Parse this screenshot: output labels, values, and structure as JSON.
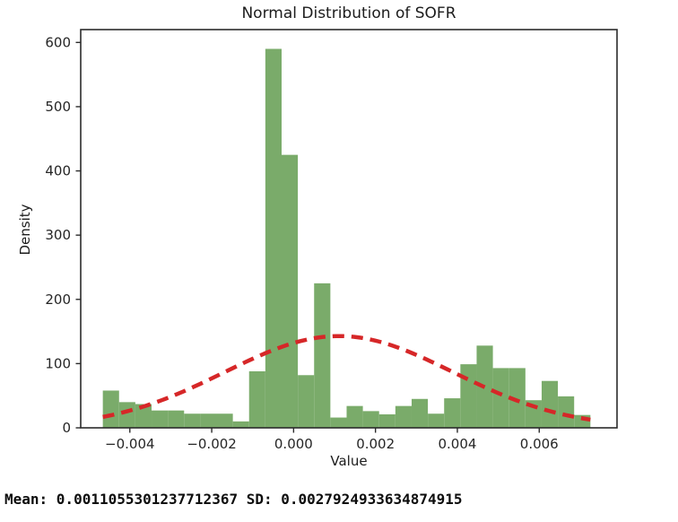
{
  "figure": {
    "footer": "Mean: 0.0011055301237712367 SD: 0.0027924933634874915"
  },
  "chart_data": {
    "type": "bar",
    "subtype": "histogram-with-normal-curve",
    "title": "Normal Distribution of SOFR",
    "xlabel": "Value",
    "ylabel": "Density",
    "xlim": [
      -0.0052,
      0.0079
    ],
    "ylim": [
      0,
      620
    ],
    "grid": false,
    "legend": null,
    "x_ticks": [
      -0.004,
      -0.002,
      0.0,
      0.002,
      0.004,
      0.006
    ],
    "x_tick_labels": [
      "−0.004",
      "−0.002",
      "0.000",
      "0.002",
      "0.004",
      "0.006"
    ],
    "y_ticks": [
      0,
      100,
      200,
      300,
      400,
      500,
      600
    ],
    "y_tick_labels": [
      "0",
      "100",
      "200",
      "300",
      "400",
      "500",
      "600"
    ],
    "bins": {
      "start": -0.00466,
      "bin_width": 0.000397,
      "count": 30,
      "densities": [
        58,
        40,
        37,
        27,
        27,
        22,
        22,
        22,
        10,
        88,
        590,
        425,
        82,
        225,
        16,
        34,
        26,
        21,
        34,
        45,
        22,
        46,
        99,
        128,
        93,
        93,
        43,
        73,
        49,
        20
      ]
    },
    "normal_curve": {
      "mean": 0.0011055301237712367,
      "sd": 0.0027924933634874915,
      "x_range": [
        -0.00466,
        0.00725
      ],
      "line_style": "dashed",
      "peak_density": 142.9
    },
    "colors": {
      "bars": "#7aab6a",
      "curve": "#d62728",
      "spine": "#2b2b2b",
      "background": "#ffffff"
    }
  }
}
